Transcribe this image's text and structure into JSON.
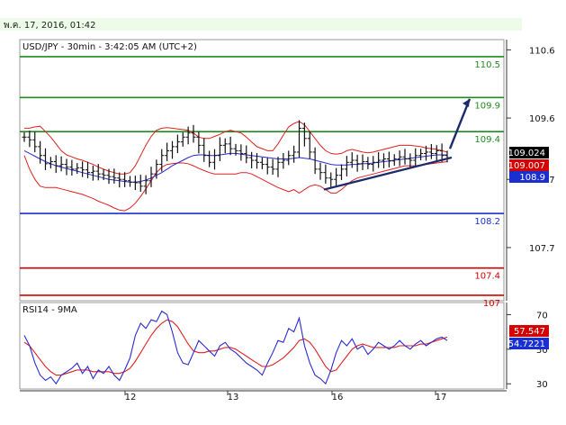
{
  "header": {
    "datetime": "พ.ค. 17, 2016, 01:42"
  },
  "chart_data": [
    {
      "type": "candlestick",
      "title": "USD/JPY - 30min - 3:42:05 AM (UTC+2)",
      "y_axis_ticks": [
        110.6,
        109.6,
        108.7,
        107.7
      ],
      "y_axis_tick_labels": [
        "110.6",
        "109.6",
        "108.7",
        "107.7"
      ],
      "ylim": [
        106.92,
        110.75
      ],
      "x_axis_tick_labels": [
        "12",
        "13",
        "16",
        "17"
      ],
      "current_price_labels": [
        "109.024",
        "109.007",
        "108.9"
      ],
      "current_price_colors": [
        "#000000",
        "#d40000",
        "#1a2fd0"
      ],
      "horizontal_levels": [
        {
          "label": "110.5",
          "value": 110.5,
          "color": "#1f8c1f"
        },
        {
          "label": "109.9",
          "value": 109.9,
          "color": "#1f8c1f"
        },
        {
          "label": "109.4",
          "value": 109.4,
          "color": "#1f8c1f"
        },
        {
          "label": "108.2",
          "value": 108.2,
          "color": "#1a2fd0"
        },
        {
          "label": "107.4",
          "value": 107.4,
          "color": "#d40000"
        },
        {
          "label": "107",
          "value": 107.0,
          "color": "#d40000"
        }
      ],
      "close_series": [
        109.32,
        109.28,
        109.18,
        109.05,
        108.93,
        108.96,
        108.9,
        108.92,
        108.88,
        108.85,
        108.87,
        108.84,
        108.8,
        108.82,
        108.78,
        108.76,
        108.74,
        108.72,
        108.7,
        108.68,
        108.66,
        108.65,
        108.6,
        108.68,
        108.78,
        108.92,
        109.05,
        109.12,
        109.18,
        109.25,
        109.32,
        109.38,
        109.32,
        109.2,
        109.05,
        108.95,
        109.05,
        109.2,
        109.22,
        109.15,
        109.12,
        109.08,
        109.02,
        108.98,
        108.95,
        108.92,
        108.88,
        108.85,
        108.95,
        108.98,
        109.05,
        109.1,
        109.45,
        109.3,
        109.1,
        108.85,
        108.8,
        108.72,
        108.7,
        108.76,
        108.85,
        108.95,
        108.98,
        108.93,
        108.96,
        108.92,
        108.95,
        108.98,
        109.0,
        108.97,
        109.0,
        109.03,
        109.0,
        108.98,
        109.05,
        109.08,
        109.1,
        109.08,
        109.12,
        109.05,
        109.02
      ],
      "bollinger_upper": [
        109.45,
        109.45,
        109.47,
        109.48,
        109.4,
        109.32,
        109.22,
        109.12,
        109.06,
        109.03,
        109.0,
        108.98,
        108.95,
        108.92,
        108.88,
        108.85,
        108.82,
        108.8,
        108.78,
        108.78,
        108.8,
        108.9,
        109.05,
        109.2,
        109.33,
        109.42,
        109.45,
        109.46,
        109.45,
        109.44,
        109.43,
        109.42,
        109.38,
        109.32,
        109.3,
        109.3,
        109.33,
        109.36,
        109.4,
        109.42,
        109.4,
        109.38,
        109.32,
        109.25,
        109.18,
        109.15,
        109.12,
        109.12,
        109.22,
        109.35,
        109.47,
        109.52,
        109.55,
        109.5,
        109.4,
        109.3,
        109.2,
        109.12,
        109.08,
        109.07,
        109.08,
        109.12,
        109.14,
        109.12,
        109.1,
        109.09,
        109.1,
        109.12,
        109.14,
        109.16,
        109.18,
        109.2,
        109.2,
        109.2,
        109.19,
        109.18,
        109.16,
        109.15,
        109.14,
        109.12,
        109.1
      ],
      "bollinger_lower": [
        109.05,
        108.85,
        108.7,
        108.6,
        108.58,
        108.58,
        108.58,
        108.56,
        108.54,
        108.52,
        108.5,
        108.48,
        108.45,
        108.42,
        108.38,
        108.35,
        108.32,
        108.28,
        108.25,
        108.24,
        108.28,
        108.35,
        108.45,
        108.56,
        108.68,
        108.8,
        108.88,
        108.92,
        108.93,
        108.94,
        108.94,
        108.93,
        108.9,
        108.86,
        108.83,
        108.8,
        108.78,
        108.78,
        108.78,
        108.78,
        108.78,
        108.8,
        108.8,
        108.78,
        108.74,
        108.7,
        108.66,
        108.62,
        108.58,
        108.55,
        108.52,
        108.55,
        108.5,
        108.55,
        108.6,
        108.62,
        108.6,
        108.55,
        108.5,
        108.5,
        108.55,
        108.62,
        108.68,
        108.72,
        108.74,
        108.76,
        108.78,
        108.8,
        108.82,
        108.84,
        108.86,
        108.88,
        108.9,
        108.9,
        108.9,
        108.91,
        108.92,
        108.93,
        108.94,
        108.95,
        108.96
      ],
      "ma_series": [
        109.12,
        109.08,
        109.04,
        109.0,
        108.96,
        108.93,
        108.9,
        108.88,
        108.86,
        108.84,
        108.82,
        108.8,
        108.78,
        108.76,
        108.74,
        108.72,
        108.7,
        108.69,
        108.68,
        108.67,
        108.66,
        108.66,
        108.67,
        108.69,
        108.72,
        108.76,
        108.8,
        108.85,
        108.9,
        108.94,
        108.98,
        109.02,
        109.05,
        109.06,
        109.06,
        109.05,
        109.05,
        109.06,
        109.07,
        109.08,
        109.08,
        109.07,
        109.06,
        109.05,
        109.04,
        109.03,
        109.02,
        109.01,
        109.0,
        109.0,
        109.0,
        109.01,
        109.02,
        109.01,
        109.0,
        108.98,
        108.96,
        108.94,
        108.92,
        108.91,
        108.91,
        108.91,
        108.92,
        108.92,
        108.93,
        108.93,
        108.94,
        108.95,
        108.96,
        108.97,
        108.98,
        108.99,
        109.0,
        109.01,
        109.02,
        109.03,
        109.04,
        109.05,
        109.06,
        109.06,
        109.06
      ],
      "trendline": {
        "from": [
          108.55
        ],
        "to": [
          109.02
        ]
      },
      "forecast_arrow": {
        "from": 109.15,
        "to": 109.88
      }
    },
    {
      "type": "line",
      "title": "RSI14 - 9MA",
      "y_axis_ticks": [
        70,
        50,
        30
      ],
      "y_axis_tick_labels": [
        "70",
        "50",
        "30"
      ],
      "ylim": [
        27,
        77
      ],
      "current_values": [
        "57.547",
        "54.7221"
      ],
      "current_value_colors": [
        "#d40000",
        "#1a2fd0"
      ],
      "rsi_series": [
        58,
        52,
        42,
        35,
        32,
        34,
        30,
        35,
        37,
        39,
        42,
        36,
        40,
        33,
        38,
        36,
        40,
        35,
        32,
        38,
        45,
        58,
        65,
        62,
        67,
        66,
        72,
        70,
        60,
        48,
        42,
        41,
        48,
        55,
        52,
        49,
        46,
        52,
        54,
        50,
        48,
        45,
        42,
        40,
        38,
        35,
        42,
        48,
        55,
        54,
        62,
        60,
        68,
        52,
        42,
        35,
        33,
        30,
        38,
        48,
        55,
        52,
        56,
        50,
        52,
        47,
        50,
        54,
        52,
        50,
        52,
        55,
        52,
        50,
        53,
        55,
        52,
        54,
        56,
        57,
        55
      ],
      "ma_series": [
        54,
        52,
        48,
        44,
        40,
        37,
        35,
        35,
        36,
        37,
        38,
        38,
        38,
        37,
        37,
        37,
        37,
        36,
        36,
        37,
        39,
        43,
        48,
        53,
        58,
        62,
        65,
        67,
        66,
        63,
        58,
        53,
        49,
        48,
        48,
        49,
        49,
        50,
        51,
        51,
        50,
        48,
        46,
        44,
        42,
        40,
        40,
        41,
        43,
        45,
        48,
        51,
        55,
        56,
        54,
        50,
        45,
        40,
        37,
        38,
        42,
        46,
        50,
        52,
        53,
        52,
        51,
        51,
        51,
        51,
        51,
        52,
        52,
        52,
        52,
        53,
        53,
        54,
        55,
        56,
        57
      ]
    }
  ]
}
